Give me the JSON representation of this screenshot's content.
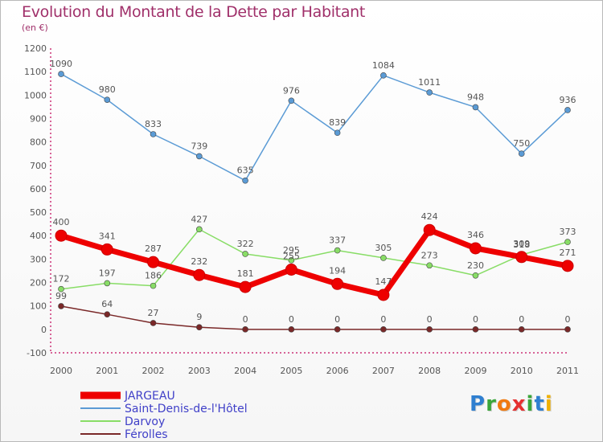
{
  "title": "Evolution du Montant de la Dette par Habitant",
  "unit": "(en €)",
  "logo": {
    "letters": [
      {
        "ch": "P",
        "color": "#2f7fd0"
      },
      {
        "ch": "r",
        "color": "#3aa63a"
      },
      {
        "ch": "o",
        "color": "#f07a10"
      },
      {
        "ch": "x",
        "color": "#e53030"
      },
      {
        "ch": "i",
        "color": "#3aa63a"
      },
      {
        "ch": "t",
        "color": "#2f7fd0"
      },
      {
        "ch": "i",
        "color": "#f0b000"
      }
    ]
  },
  "chart_data": {
    "type": "line",
    "x": [
      "2000",
      "2001",
      "2002",
      "2003",
      "2004",
      "2005",
      "2006",
      "2007",
      "2008",
      "2009",
      "2010",
      "2011"
    ],
    "ylim": [
      -100,
      1200
    ],
    "yticks": [
      -100,
      0,
      100,
      200,
      300,
      400,
      500,
      600,
      700,
      800,
      900,
      1000,
      1100,
      1200
    ],
    "grid": false,
    "legend_position": "bottom-left",
    "series": [
      {
        "name": "JARGEAU",
        "color": "#ee0000",
        "bold": true,
        "values": [
          400,
          341,
          287,
          232,
          181,
          255,
          194,
          147,
          424,
          346,
          309,
          271
        ]
      },
      {
        "name": "Saint-Denis-de-l'Hôtel",
        "color": "#5b9bd5",
        "bold": false,
        "values": [
          1090,
          980,
          833,
          739,
          635,
          976,
          839,
          1084,
          1011,
          948,
          750,
          936
        ]
      },
      {
        "name": "Darvoy",
        "color": "#88dd66",
        "bold": false,
        "values": [
          172,
          197,
          186,
          427,
          322,
          295,
          337,
          305,
          273,
          230,
          318,
          373
        ]
      },
      {
        "name": "Férolles",
        "color": "#7a2828",
        "bold": false,
        "values": [
          99,
          64,
          27,
          9,
          0,
          0,
          0,
          0,
          0,
          0,
          0,
          0
        ]
      }
    ]
  }
}
